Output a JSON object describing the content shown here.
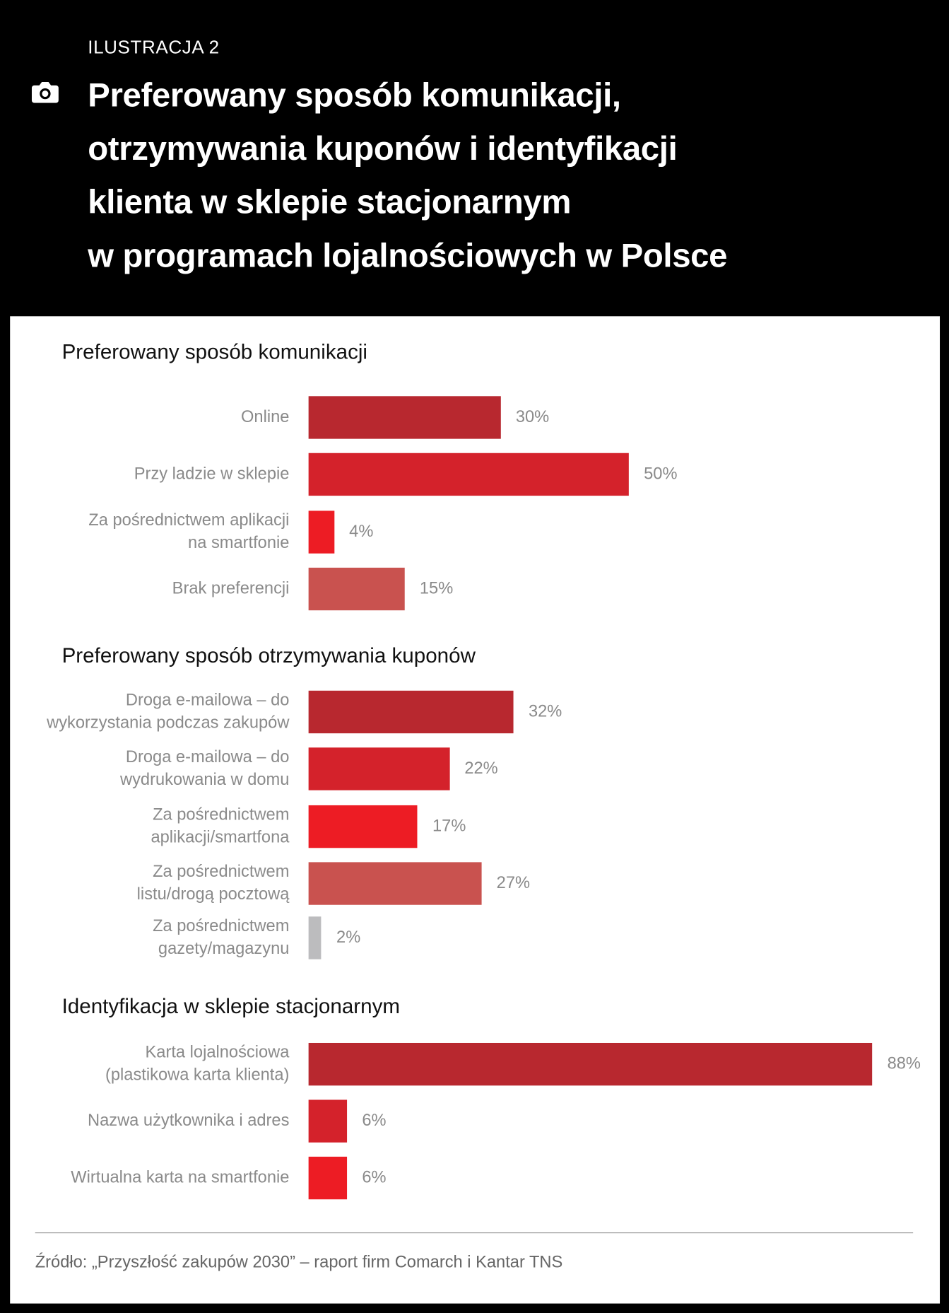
{
  "header": {
    "label": "ILUSTRACJA 2",
    "title_lines": [
      "Preferowany sposób komunikacji,",
      "otrzymywania kuponów i identyfikacji",
      "klienta w sklepie stacjonarnym",
      "w programach lojalnościowych w Polsce"
    ],
    "icon": "camera-icon"
  },
  "colors": {
    "dark_red": "#b8282f",
    "red": "#d4222b",
    "bright_red": "#ed1c24",
    "salmon": "#c9524f",
    "gray": "#bcbcbe"
  },
  "chart_data": [
    {
      "type": "bar",
      "orientation": "horizontal",
      "title": "Preferowany sposób komunikacji",
      "categories": [
        [
          "Online"
        ],
        [
          "Przy ladzie w sklepie"
        ],
        [
          "Za pośrednictwem aplikacji",
          "na smartfonie"
        ],
        [
          "Brak preferencji"
        ]
      ],
      "values": [
        30,
        50,
        4,
        15
      ],
      "labels": [
        "30%",
        "50%",
        "4%",
        "15%"
      ],
      "colors": [
        "#b8282f",
        "#d4222b",
        "#ed1c24",
        "#c9524f"
      ]
    },
    {
      "type": "bar",
      "orientation": "horizontal",
      "title": "Preferowany sposób otrzymywania kuponów",
      "categories": [
        [
          "Droga e-mailowa – do",
          "wykorzystania podczas zakupów"
        ],
        [
          "Droga e-mailowa – do",
          "wydrukowania w domu"
        ],
        [
          "Za pośrednictwem",
          "aplikacji/smartfona"
        ],
        [
          "Za pośrednictwem",
          "listu/drogą pocztową"
        ],
        [
          "Za pośrednictwem",
          "gazety/magazynu"
        ]
      ],
      "values": [
        32,
        22,
        17,
        27,
        2
      ],
      "labels": [
        "32%",
        "22%",
        "17%",
        "27%",
        "2%"
      ],
      "colors": [
        "#b8282f",
        "#d4222b",
        "#ed1c24",
        "#c9524f",
        "#bcbcbe"
      ]
    },
    {
      "type": "bar",
      "orientation": "horizontal",
      "title": "Identyfikacja w sklepie stacjonarnym",
      "categories": [
        [
          "Karta lojalnościowa",
          "(plastikowa karta klienta)"
        ],
        [
          "Nazwa użytkownika i adres"
        ],
        [
          "Wirtualna karta na smartfonie"
        ]
      ],
      "values": [
        88,
        6,
        6
      ],
      "labels": [
        "88%",
        "6%",
        "6%"
      ],
      "colors": [
        "#b8282f",
        "#d4222b",
        "#ed1c24"
      ]
    }
  ],
  "source": "Źródło: „Przyszłość zakupów 2030” – raport firm Comarch i Kantar TNS"
}
